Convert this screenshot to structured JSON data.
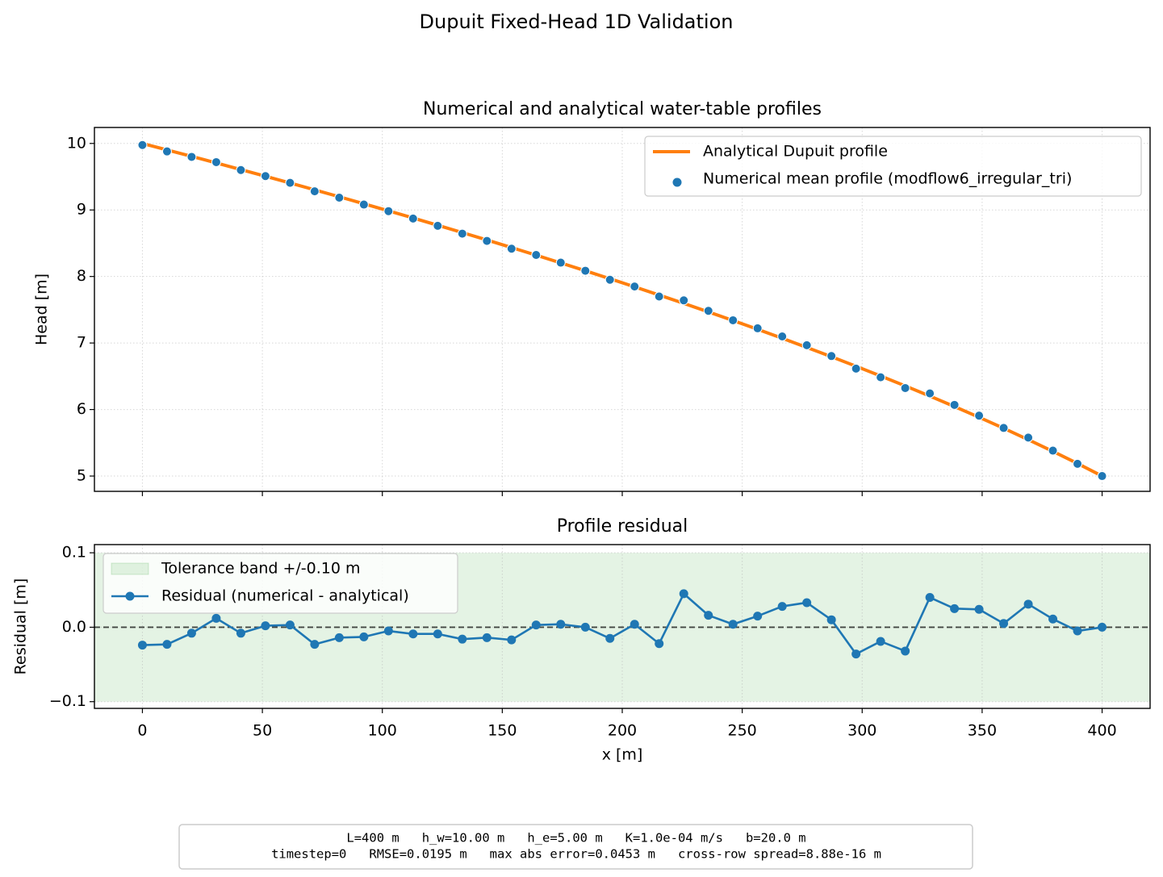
{
  "title": "Dupuit Fixed-Head 1D Validation",
  "chart_data": [
    {
      "type": "line",
      "title": "Numerical and analytical water-table profiles",
      "ylabel": "Head [m]",
      "xlim": [
        -20,
        420
      ],
      "ylim": [
        4.77,
        10.24
      ],
      "xticks": [
        0,
        50,
        100,
        150,
        200,
        250,
        300,
        350,
        400
      ],
      "show_xtick_labels": false,
      "yticks": [
        5,
        6,
        7,
        8,
        9,
        10
      ],
      "grid": true,
      "legend": "upper right",
      "x": [
        0,
        10.26,
        20.51,
        30.77,
        41.03,
        51.28,
        61.54,
        71.79,
        82.05,
        92.31,
        102.56,
        112.82,
        123.08,
        133.33,
        143.59,
        153.85,
        164.1,
        174.36,
        184.62,
        194.87,
        205.13,
        215.38,
        225.64,
        235.9,
        246.15,
        256.41,
        266.67,
        276.92,
        287.18,
        297.44,
        307.69,
        317.95,
        328.21,
        338.46,
        348.72,
        358.97,
        369.23,
        379.49,
        389.74,
        400
      ],
      "series": [
        {
          "name": "Analytical Dupuit profile",
          "color": "#ff7f0e",
          "style": "line",
          "values": [
            10,
            9.9034,
            9.8058,
            9.7073,
            9.6077,
            9.5071,
            9.4054,
            9.3026,
            9.1986,
            9.0935,
            8.9872,
            8.8795,
            8.7706,
            8.6603,
            8.5485,
            8.4353,
            8.3205,
            8.2041,
            8.0861,
            7.9663,
            7.8447,
            7.7211,
            7.5955,
            7.4679,
            7.338,
            7.2058,
            7.0711,
            6.9337,
            6.7937,
            6.6506,
            6.5044,
            6.3549,
            6.2017,
            6.0447,
            5.8835,
            5.7177,
            5.547,
            5.3709,
            5.1887,
            5.0
          ]
        },
        {
          "name": "Numerical mean profile (modflow6_irregular_tri)",
          "color": "#1f77b4",
          "style": "markers",
          "values": [
            9.976,
            9.88,
            9.798,
            9.719,
            9.6,
            9.509,
            9.408,
            9.28,
            9.185,
            9.081,
            8.982,
            8.871,
            8.762,
            8.644,
            8.535,
            8.418,
            8.324,
            8.208,
            8.086,
            7.951,
            7.849,
            7.699,
            7.641,
            7.484,
            7.342,
            7.221,
            7.099,
            6.967,
            6.804,
            6.615,
            6.485,
            6.323,
            6.242,
            6.07,
            5.908,
            5.723,
            5.578,
            5.382,
            5.184,
            5.0
          ]
        }
      ]
    },
    {
      "type": "line",
      "title": "Profile residual",
      "xlabel": "x [m]",
      "ylabel": "Residual [m]",
      "xlim": [
        -20,
        420
      ],
      "ylim": [
        -0.109,
        0.111
      ],
      "xticks": [
        0,
        50,
        100,
        150,
        200,
        250,
        300,
        350,
        400
      ],
      "show_xtick_labels": true,
      "yticks": [
        0.1,
        {
          "value": 0,
          "label": "0.0"
        },
        {
          "value": -0.1,
          "label": "−0.1"
        }
      ],
      "grid": true,
      "legend": "upper left",
      "band": {
        "name": "Tolerance band +/-0.10 m",
        "lower": -0.1,
        "upper": 0.1,
        "color": "#2ca02c"
      },
      "reference": 0,
      "x": [
        0,
        10.26,
        20.51,
        30.77,
        41.03,
        51.28,
        61.54,
        71.79,
        82.05,
        92.31,
        102.56,
        112.82,
        123.08,
        133.33,
        143.59,
        153.85,
        164.1,
        174.36,
        184.62,
        194.87,
        205.13,
        215.38,
        225.64,
        235.9,
        246.15,
        256.41,
        266.67,
        276.92,
        287.18,
        297.44,
        307.69,
        317.95,
        328.21,
        338.46,
        348.72,
        358.97,
        369.23,
        379.49,
        389.74,
        400
      ],
      "series": [
        {
          "name": "Residual (numerical - analytical)",
          "color": "#1f77b4",
          "style": "line-markers",
          "values": [
            -0.024,
            -0.023,
            -0.008,
            0.012,
            -0.008,
            0.002,
            0.003,
            -0.023,
            -0.014,
            -0.013,
            -0.005,
            -0.009,
            -0.009,
            -0.016,
            -0.014,
            -0.017,
            0.003,
            0.004,
            0.0,
            -0.015,
            0.004,
            -0.022,
            0.045,
            0.016,
            0.004,
            0.015,
            0.028,
            0.033,
            0.01,
            -0.036,
            -0.019,
            -0.032,
            0.04,
            0.025,
            0.024,
            0.005,
            0.031,
            0.011,
            -0.005,
            0.0
          ]
        }
      ]
    }
  ],
  "footer": [
    "L=400 m   h_w=10.00 m   h_e=5.00 m   K=1.0e-04 m/s   b=20.0 m",
    "timestep=0   RMSE=0.0195 m   max abs error=0.0453 m   cross-row spread=8.88e-16 m"
  ]
}
